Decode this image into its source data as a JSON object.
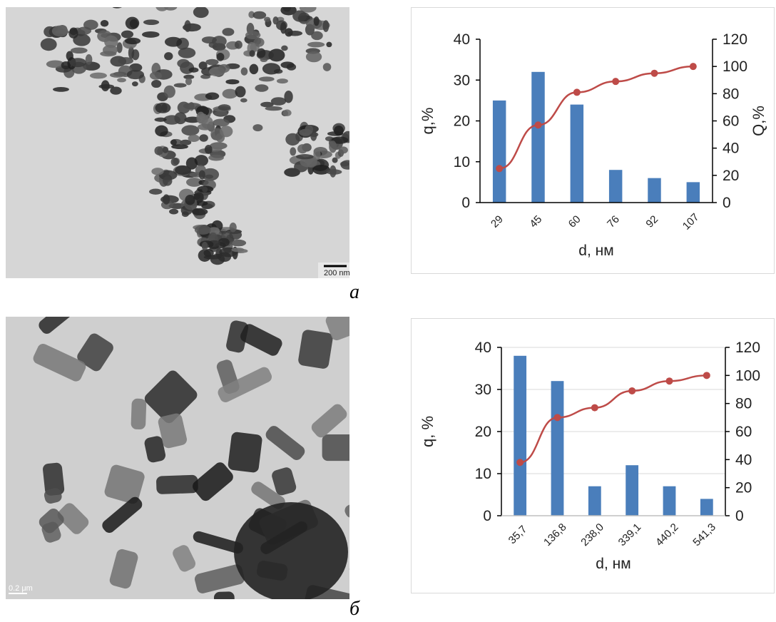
{
  "panels": {
    "a": {
      "label": "а",
      "scale_bar_text": "200 nm"
    },
    "b": {
      "label": "б",
      "scale_bar_text": "0.2 μm"
    }
  },
  "colors": {
    "bars": "#4a7ebb",
    "line": "#be4b48",
    "axis": "#000000"
  },
  "chart_data": [
    {
      "type": "bar",
      "categories": [
        "29",
        "45",
        "60",
        "76",
        "92",
        "107"
      ],
      "series": [
        {
          "type": "bar",
          "axis": "left",
          "values": [
            25,
            32,
            24,
            8,
            6,
            5
          ]
        },
        {
          "type": "line",
          "axis": "right",
          "values": [
            25,
            57,
            81,
            89,
            95,
            100
          ]
        }
      ],
      "xlabel": "d, нм",
      "ylabel": "q,%",
      "ylabel_right": "Q,%",
      "ylim": [
        0,
        40
      ],
      "ylim_right": [
        0,
        120
      ],
      "yticks": [
        "0",
        "10",
        "20",
        "30",
        "40"
      ],
      "yticks_right": [
        "0",
        "20",
        "40",
        "60",
        "80",
        "100",
        "120"
      ],
      "grid": false
    },
    {
      "type": "bar",
      "categories": [
        "35,7",
        "136,8",
        "238,0",
        "339,1",
        "440,2",
        "541,3"
      ],
      "series": [
        {
          "type": "bar",
          "axis": "left",
          "values": [
            38,
            32,
            7,
            12,
            7,
            4
          ]
        },
        {
          "type": "line",
          "axis": "right",
          "values": [
            38,
            70,
            77,
            89,
            96,
            100
          ]
        }
      ],
      "xlabel": "d, нм",
      "ylabel": "q, %",
      "ylabel_right": "",
      "ylim": [
        0,
        40
      ],
      "ylim_right": [
        0,
        120
      ],
      "yticks": [
        "0",
        "10",
        "20",
        "30",
        "40"
      ],
      "yticks_right": [
        "0",
        "20",
        "40",
        "60",
        "80",
        "100",
        "120"
      ],
      "grid": true
    }
  ]
}
